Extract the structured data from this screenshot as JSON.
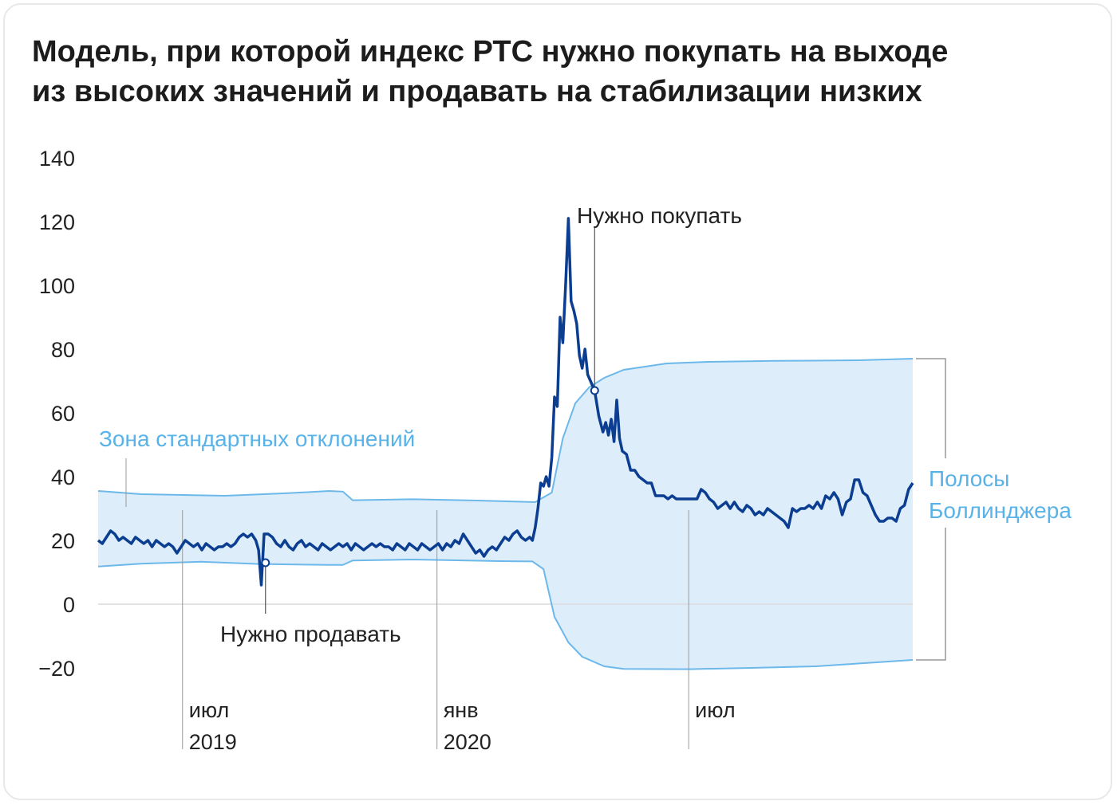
{
  "title": {
    "line1": "Модель, при которой индекс РТС нужно покупать на выходе",
    "line2": "из высоких значений и продавать на стабилизации низких"
  },
  "colors": {
    "index_line": "#0b3d91",
    "band_line": "#6db8ea",
    "band_fill": "#ddeefa",
    "band_label": "#59b3e8",
    "text": "#222222",
    "guide": "#999999",
    "zero_line": "#dcdcdc"
  },
  "chart_data": {
    "type": "area",
    "ylim": [
      -20,
      140
    ],
    "y_ticks": [
      140,
      120,
      100,
      80,
      60,
      40,
      20,
      0,
      -20
    ],
    "x_ticks": [
      {
        "month": "июл",
        "year": "2019",
        "x": "2019-07-01"
      },
      {
        "month": "янв",
        "year": "2020",
        "x": "2020-01-01"
      },
      {
        "month": "июл",
        "year": "",
        "x": "2020-07-01"
      }
    ],
    "x_range": [
      "2019-05-01",
      "2020-12-31"
    ],
    "series": [
      {
        "role": "index",
        "points": [
          [
            "2019-05-01",
            20
          ],
          [
            "2019-05-04",
            19
          ],
          [
            "2019-05-07",
            21
          ],
          [
            "2019-05-10",
            23
          ],
          [
            "2019-05-13",
            22
          ],
          [
            "2019-05-16",
            20
          ],
          [
            "2019-05-19",
            21
          ],
          [
            "2019-05-22",
            20
          ],
          [
            "2019-05-25",
            19
          ],
          [
            "2019-05-28",
            21
          ],
          [
            "2019-05-31",
            20
          ],
          [
            "2019-06-03",
            19
          ],
          [
            "2019-06-06",
            20
          ],
          [
            "2019-06-09",
            18
          ],
          [
            "2019-06-12",
            20
          ],
          [
            "2019-06-15",
            19
          ],
          [
            "2019-06-18",
            18
          ],
          [
            "2019-06-21",
            19
          ],
          [
            "2019-06-24",
            18
          ],
          [
            "2019-06-27",
            16
          ],
          [
            "2019-06-30",
            18
          ],
          [
            "2019-07-03",
            20
          ],
          [
            "2019-07-06",
            19
          ],
          [
            "2019-07-09",
            18
          ],
          [
            "2019-07-12",
            19
          ],
          [
            "2019-07-15",
            17
          ],
          [
            "2019-07-18",
            19
          ],
          [
            "2019-07-21",
            18
          ],
          [
            "2019-07-24",
            17
          ],
          [
            "2019-07-27",
            18
          ],
          [
            "2019-07-30",
            18
          ],
          [
            "2019-08-02",
            19
          ],
          [
            "2019-08-05",
            18
          ],
          [
            "2019-08-08",
            19
          ],
          [
            "2019-08-11",
            21
          ],
          [
            "2019-08-14",
            22
          ],
          [
            "2019-08-17",
            21
          ],
          [
            "2019-08-20",
            22
          ],
          [
            "2019-08-23",
            20
          ],
          [
            "2019-08-25",
            17
          ],
          [
            "2019-08-27",
            6
          ],
          [
            "2019-08-29",
            22
          ],
          [
            "2019-09-01",
            22
          ],
          [
            "2019-09-04",
            21
          ],
          [
            "2019-09-07",
            19
          ],
          [
            "2019-09-10",
            18
          ],
          [
            "2019-09-13",
            20
          ],
          [
            "2019-09-16",
            18
          ],
          [
            "2019-09-19",
            17
          ],
          [
            "2019-09-22",
            19
          ],
          [
            "2019-09-25",
            20
          ],
          [
            "2019-09-28",
            18
          ],
          [
            "2019-10-01",
            19
          ],
          [
            "2019-10-04",
            18
          ],
          [
            "2019-10-07",
            17
          ],
          [
            "2019-10-10",
            19
          ],
          [
            "2019-10-13",
            18
          ],
          [
            "2019-10-16",
            17
          ],
          [
            "2019-10-19",
            18
          ],
          [
            "2019-10-22",
            19
          ],
          [
            "2019-10-25",
            18
          ],
          [
            "2019-10-28",
            19
          ],
          [
            "2019-10-31",
            17
          ],
          [
            "2019-11-03",
            19
          ],
          [
            "2019-11-06",
            18
          ],
          [
            "2019-11-09",
            17
          ],
          [
            "2019-11-12",
            18
          ],
          [
            "2019-11-15",
            19
          ],
          [
            "2019-11-18",
            18
          ],
          [
            "2019-11-21",
            19
          ],
          [
            "2019-11-24",
            18
          ],
          [
            "2019-11-27",
            18
          ],
          [
            "2019-11-30",
            17
          ],
          [
            "2019-12-03",
            19
          ],
          [
            "2019-12-06",
            18
          ],
          [
            "2019-12-09",
            17
          ],
          [
            "2019-12-12",
            19
          ],
          [
            "2019-12-15",
            18
          ],
          [
            "2019-12-18",
            17
          ],
          [
            "2019-12-21",
            19
          ],
          [
            "2019-12-24",
            18
          ],
          [
            "2019-12-27",
            17
          ],
          [
            "2019-12-30",
            18
          ],
          [
            "2020-01-02",
            19
          ],
          [
            "2020-01-05",
            17
          ],
          [
            "2020-01-08",
            19
          ],
          [
            "2020-01-11",
            18
          ],
          [
            "2020-01-14",
            20
          ],
          [
            "2020-01-17",
            19
          ],
          [
            "2020-01-20",
            22
          ],
          [
            "2020-01-23",
            20
          ],
          [
            "2020-01-26",
            18
          ],
          [
            "2020-01-29",
            16
          ],
          [
            "2020-02-01",
            17
          ],
          [
            "2020-02-04",
            15
          ],
          [
            "2020-02-07",
            17
          ],
          [
            "2020-02-10",
            18
          ],
          [
            "2020-02-13",
            17
          ],
          [
            "2020-02-16",
            19
          ],
          [
            "2020-02-19",
            21
          ],
          [
            "2020-02-22",
            20
          ],
          [
            "2020-02-25",
            22
          ],
          [
            "2020-02-28",
            23
          ],
          [
            "2020-03-02",
            21
          ],
          [
            "2020-03-05",
            20
          ],
          [
            "2020-03-08",
            21
          ],
          [
            "2020-03-10",
            20
          ],
          [
            "2020-03-12",
            24
          ],
          [
            "2020-03-14",
            30
          ],
          [
            "2020-03-16",
            38
          ],
          [
            "2020-03-18",
            37
          ],
          [
            "2020-03-20",
            40
          ],
          [
            "2020-03-22",
            37
          ],
          [
            "2020-03-24",
            46
          ],
          [
            "2020-03-26",
            65
          ],
          [
            "2020-03-28",
            62
          ],
          [
            "2020-03-30",
            90
          ],
          [
            "2020-04-01",
            82
          ],
          [
            "2020-04-03",
            100
          ],
          [
            "2020-04-05",
            121
          ],
          [
            "2020-04-07",
            95
          ],
          [
            "2020-04-09",
            92
          ],
          [
            "2020-04-11",
            88
          ],
          [
            "2020-04-13",
            78
          ],
          [
            "2020-04-15",
            74
          ],
          [
            "2020-04-17",
            80
          ],
          [
            "2020-04-19",
            72
          ],
          [
            "2020-04-21",
            70
          ],
          [
            "2020-04-24",
            67
          ],
          [
            "2020-04-27",
            59
          ],
          [
            "2020-04-30",
            54
          ],
          [
            "2020-05-02",
            57
          ],
          [
            "2020-05-04",
            53
          ],
          [
            "2020-05-06",
            58
          ],
          [
            "2020-05-08",
            51
          ],
          [
            "2020-05-10",
            64
          ],
          [
            "2020-05-12",
            52
          ],
          [
            "2020-05-14",
            48
          ],
          [
            "2020-05-17",
            47
          ],
          [
            "2020-05-20",
            42
          ],
          [
            "2020-05-23",
            42
          ],
          [
            "2020-05-26",
            40
          ],
          [
            "2020-05-29",
            39
          ],
          [
            "2020-06-01",
            38
          ],
          [
            "2020-06-04",
            38
          ],
          [
            "2020-06-07",
            34
          ],
          [
            "2020-06-10",
            34
          ],
          [
            "2020-06-13",
            34
          ],
          [
            "2020-06-16",
            33
          ],
          [
            "2020-06-19",
            34
          ],
          [
            "2020-06-22",
            33
          ],
          [
            "2020-06-25",
            33
          ],
          [
            "2020-06-28",
            33
          ],
          [
            "2020-07-01",
            33
          ],
          [
            "2020-07-04",
            33
          ],
          [
            "2020-07-07",
            33
          ],
          [
            "2020-07-10",
            36
          ],
          [
            "2020-07-13",
            35
          ],
          [
            "2020-07-16",
            33
          ],
          [
            "2020-07-19",
            32
          ],
          [
            "2020-07-22",
            30
          ],
          [
            "2020-07-25",
            31
          ],
          [
            "2020-07-28",
            32
          ],
          [
            "2020-07-31",
            30
          ],
          [
            "2020-08-03",
            32
          ],
          [
            "2020-08-06",
            30
          ],
          [
            "2020-08-09",
            29
          ],
          [
            "2020-08-12",
            31
          ],
          [
            "2020-08-15",
            30
          ],
          [
            "2020-08-18",
            28
          ],
          [
            "2020-08-21",
            29
          ],
          [
            "2020-08-24",
            28
          ],
          [
            "2020-08-27",
            30
          ],
          [
            "2020-08-30",
            29
          ],
          [
            "2020-09-02",
            28
          ],
          [
            "2020-09-05",
            27
          ],
          [
            "2020-09-08",
            26
          ],
          [
            "2020-09-11",
            24
          ],
          [
            "2020-09-14",
            30
          ],
          [
            "2020-09-17",
            29
          ],
          [
            "2020-09-20",
            30
          ],
          [
            "2020-09-23",
            30
          ],
          [
            "2020-09-26",
            31
          ],
          [
            "2020-09-29",
            30
          ],
          [
            "2020-10-02",
            32
          ],
          [
            "2020-10-05",
            30
          ],
          [
            "2020-10-08",
            34
          ],
          [
            "2020-10-11",
            33
          ],
          [
            "2020-10-14",
            35
          ],
          [
            "2020-10-17",
            33
          ],
          [
            "2020-10-20",
            28
          ],
          [
            "2020-10-23",
            32
          ],
          [
            "2020-10-26",
            33
          ],
          [
            "2020-10-29",
            39
          ],
          [
            "2020-11-01",
            39
          ],
          [
            "2020-11-04",
            35
          ],
          [
            "2020-11-07",
            34
          ],
          [
            "2020-11-10",
            31
          ],
          [
            "2020-11-13",
            28
          ],
          [
            "2020-11-16",
            26
          ],
          [
            "2020-11-19",
            26
          ],
          [
            "2020-11-22",
            27
          ],
          [
            "2020-11-25",
            27
          ],
          [
            "2020-11-28",
            26
          ],
          [
            "2020-12-01",
            30
          ],
          [
            "2020-12-04",
            31
          ],
          [
            "2020-12-07",
            36
          ],
          [
            "2020-12-10",
            38
          ]
        ]
      },
      {
        "role": "upper_band",
        "points": [
          [
            "2019-05-01",
            35.5
          ],
          [
            "2019-06-01",
            34.5
          ],
          [
            "2019-08-01",
            34
          ],
          [
            "2019-09-15",
            34.8
          ],
          [
            "2019-10-15",
            35.5
          ],
          [
            "2019-10-25",
            35.3
          ],
          [
            "2019-11-01",
            32.6
          ],
          [
            "2019-12-15",
            32.9
          ],
          [
            "2020-01-30",
            32.5
          ],
          [
            "2020-03-12",
            32
          ],
          [
            "2020-03-24",
            35
          ],
          [
            "2020-04-01",
            52
          ],
          [
            "2020-04-10",
            63
          ],
          [
            "2020-04-20",
            68
          ],
          [
            "2020-05-01",
            71
          ],
          [
            "2020-05-15",
            73.5
          ],
          [
            "2020-06-15",
            75.5
          ],
          [
            "2020-07-15",
            76
          ],
          [
            "2020-09-01",
            76.3
          ],
          [
            "2020-11-01",
            76.5
          ],
          [
            "2020-12-10",
            77
          ]
        ]
      },
      {
        "role": "lower_band",
        "points": [
          [
            "2019-05-01",
            11.8
          ],
          [
            "2019-06-01",
            12.7
          ],
          [
            "2019-07-15",
            13.3
          ],
          [
            "2019-08-25",
            12.6
          ],
          [
            "2019-10-15",
            12.3
          ],
          [
            "2019-10-25",
            12.3
          ],
          [
            "2019-11-01",
            13.7
          ],
          [
            "2019-12-15",
            14
          ],
          [
            "2020-02-15",
            13.5
          ],
          [
            "2020-03-10",
            13.4
          ],
          [
            "2020-03-18",
            11
          ],
          [
            "2020-03-26",
            -4
          ],
          [
            "2020-04-05",
            -12
          ],
          [
            "2020-04-15",
            -16.5
          ],
          [
            "2020-05-01",
            -19.5
          ],
          [
            "2020-05-15",
            -20.3
          ],
          [
            "2020-07-01",
            -20.4
          ],
          [
            "2020-08-15",
            -20
          ],
          [
            "2020-10-01",
            -19.5
          ],
          [
            "2020-12-10",
            -17.5
          ]
        ]
      }
    ],
    "annotations": {
      "zone": "Зона стандартных отклонений",
      "buy": "Нужно покупать",
      "sell": "Нужно продавать",
      "bands": [
        "Полосы",
        "Боллинджера"
      ]
    },
    "signals": {
      "buy": [
        "2020-04-24",
        67
      ],
      "sell": [
        "2019-08-30",
        13
      ]
    }
  }
}
